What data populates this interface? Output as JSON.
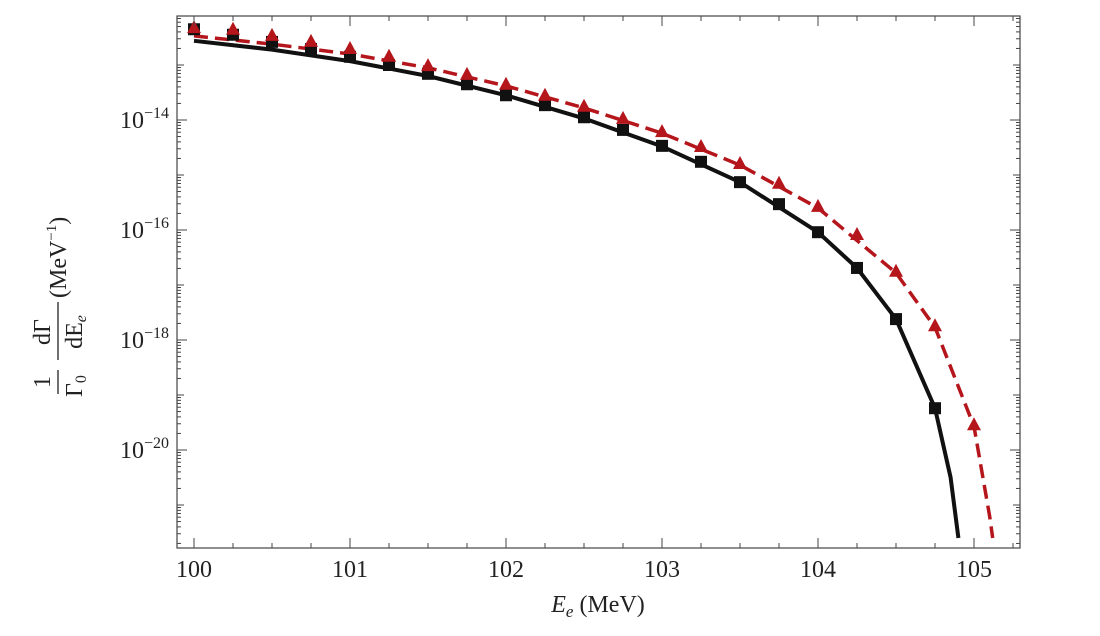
{
  "chart_data": {
    "type": "line",
    "title": "",
    "xlabel": "E_e (MeV)",
    "xlabel_parts": {
      "var": "E",
      "sub": "e",
      "unit": " (MeV)"
    },
    "ylabel_parts": {
      "frac1_num": "1",
      "frac1_den": "Γ",
      "frac1_den_sub": "0",
      "frac2_num": "dΓ",
      "frac2_den": "dE",
      "frac2_den_sub": "e",
      "unit": "(MeV",
      "unit_sup": "−1",
      "unit_close": ")"
    },
    "xlim": [
      99.9,
      105.3
    ],
    "ylim": [
      1e-22,
      1e-12
    ],
    "yscale": "log",
    "x_ticks": [
      100,
      101,
      102,
      103,
      104,
      105
    ],
    "x_tick_labels": [
      "100",
      "101",
      "102",
      "103",
      "104",
      "105"
    ],
    "y_ticks": [
      -14,
      -16,
      -18,
      -20
    ],
    "y_tick_labels": [
      {
        "base": "10",
        "exp": "−14"
      },
      {
        "base": "10",
        "exp": "−16"
      },
      {
        "base": "10",
        "exp": "−18"
      },
      {
        "base": "10",
        "exp": "−20"
      }
    ],
    "grid": false,
    "series": [
      {
        "style": "solid-line",
        "color": "#111111",
        "x": [
          100,
          100.5,
          101,
          101.5,
          102,
          102.5,
          103,
          103.5,
          104,
          104.25,
          104.5,
          104.75,
          104.85,
          104.9
        ],
        "log10_y": [
          -12.56,
          -12.72,
          -12.93,
          -13.2,
          -13.55,
          -13.97,
          -14.48,
          -15.13,
          -16.04,
          -16.69,
          -17.62,
          -19.24,
          -20.5,
          -21.6
        ]
      },
      {
        "style": "dashed-line",
        "color": "#b5161c",
        "x": [
          100,
          100.5,
          101,
          101.5,
          102,
          102.5,
          103,
          103.5,
          104,
          104.5,
          104.75,
          105,
          105.1,
          105.12
        ],
        "log10_y": [
          -12.47,
          -12.62,
          -12.8,
          -13.05,
          -13.38,
          -13.78,
          -14.24,
          -14.82,
          -15.6,
          -16.78,
          -17.77,
          -19.57,
          -21.2,
          -21.6
        ]
      },
      {
        "style": "square-markers",
        "color": "#111111",
        "x": [
          100,
          100.25,
          100.5,
          100.75,
          101,
          101.25,
          101.5,
          101.75,
          102,
          102.25,
          102.5,
          102.75,
          103,
          103.25,
          103.5,
          103.75,
          104,
          104.25,
          104.5,
          104.75
        ],
        "log10_y": [
          -12.35,
          -12.45,
          -12.58,
          -12.71,
          -12.85,
          -13.0,
          -13.16,
          -13.35,
          -13.55,
          -13.73,
          -13.95,
          -14.18,
          -14.47,
          -14.76,
          -15.13,
          -15.53,
          -16.04,
          -16.69,
          -17.62,
          -19.24
        ]
      },
      {
        "style": "triangle-markers",
        "color": "#b5161c",
        "x": [
          100,
          100.25,
          100.5,
          100.75,
          101,
          101.25,
          101.5,
          101.75,
          102,
          102.25,
          102.5,
          102.75,
          103,
          103.25,
          103.5,
          103.75,
          104,
          104.25,
          104.5,
          104.75,
          105
        ],
        "log10_y": [
          -12.33,
          -12.36,
          -12.47,
          -12.58,
          -12.71,
          -12.85,
          -13.02,
          -13.18,
          -13.36,
          -13.56,
          -13.76,
          -13.98,
          -14.22,
          -14.49,
          -14.8,
          -15.16,
          -15.58,
          -16.09,
          -16.76,
          -17.75,
          -19.55
        ]
      }
    ]
  }
}
